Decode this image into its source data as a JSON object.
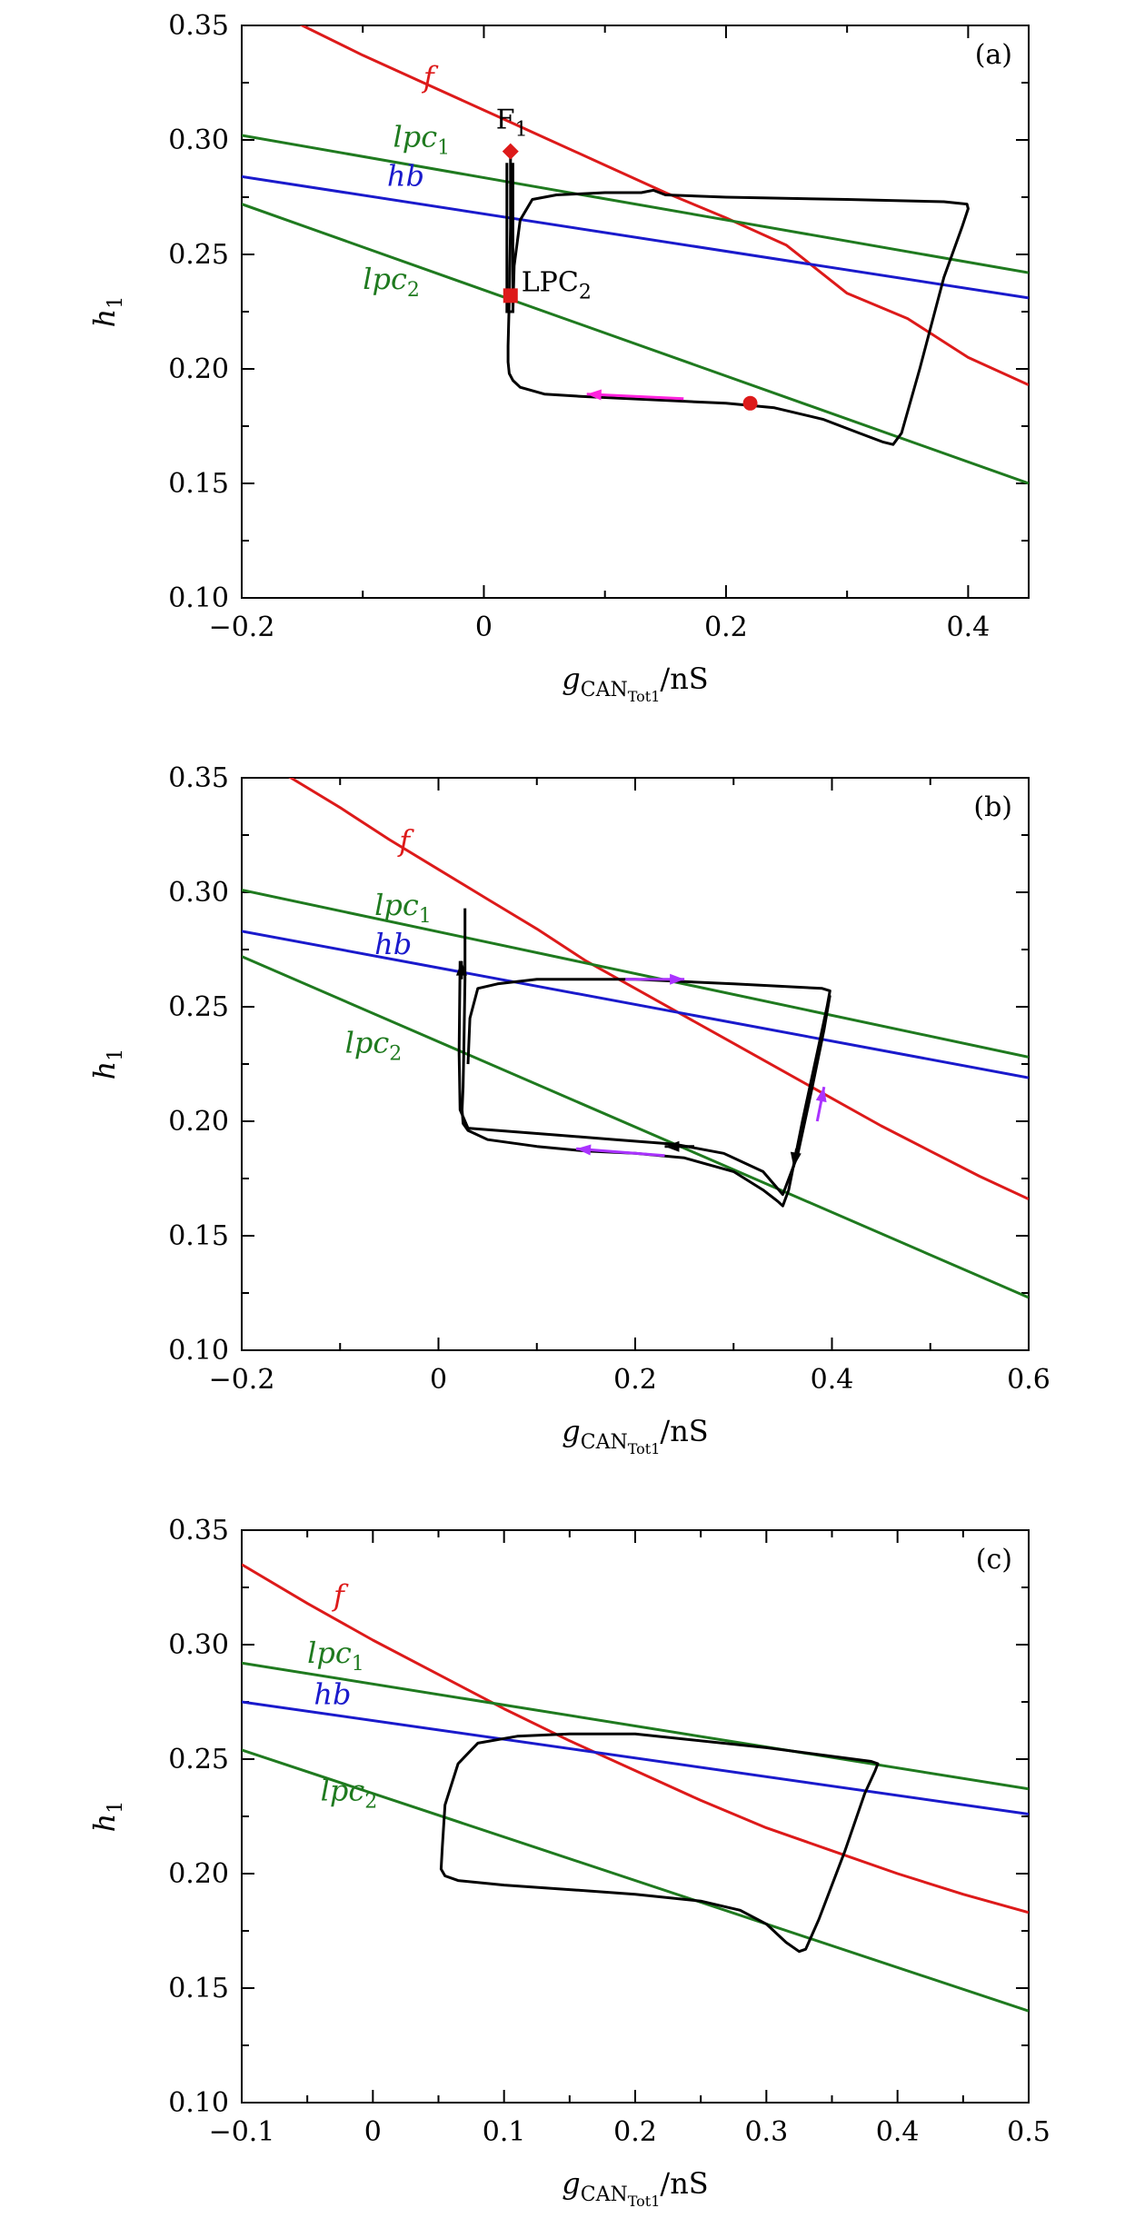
{
  "colors": {
    "f": "#dd1a1a",
    "lpc": "#1f7a1f",
    "hb": "#1a1acc",
    "trajectory": "#000000",
    "arrow_a": "#ff22dd",
    "arrow_b": "#aa33ff"
  },
  "chart_data": [
    {
      "type": "line",
      "panel": "(a)",
      "xlabel": "g",
      "xlabel_sub": "CAN",
      "xlabel_subsub": "Tot1",
      "xlabel_unit": "/nS",
      "ylabel": "h",
      "ylabel_sub": "1",
      "xlim": [
        -0.2,
        0.45
      ],
      "ylim": [
        0.1,
        0.35
      ],
      "xticks": [
        -0.2,
        0,
        0.2,
        0.4
      ],
      "xtick_labels": [
        "−0.2",
        "0",
        "0.2",
        "0.4"
      ],
      "xminor": [
        -0.1,
        0.1,
        0.3
      ],
      "yticks": [
        0.1,
        0.15,
        0.2,
        0.25,
        0.3,
        0.35
      ],
      "ytick_labels": [
        "0.10",
        "0.15",
        "0.20",
        "0.25",
        "0.30",
        "0.35"
      ],
      "series": [
        {
          "name": "f",
          "color": "f",
          "label_x": -0.05,
          "label_y": 0.323,
          "x": [
            -0.2,
            -0.15,
            -0.1,
            -0.05,
            0,
            0.05,
            0.1,
            0.15,
            0.2,
            0.25,
            0.3,
            0.35,
            0.4,
            0.45
          ],
          "y": [
            0.364,
            0.35,
            0.337,
            0.325,
            0.313,
            0.301,
            0.289,
            0.277,
            0.266,
            0.254,
            0.233,
            0.222,
            0.205,
            0.193
          ]
        },
        {
          "name": "lpc",
          "sub": "1",
          "color": "lpc",
          "label_x": -0.075,
          "label_y": 0.297,
          "x": [
            -0.2,
            0.45
          ],
          "y": [
            0.302,
            0.242
          ]
        },
        {
          "name": "hb",
          "color": "hb",
          "label_x": -0.08,
          "label_y": 0.28,
          "x": [
            -0.2,
            0.45
          ],
          "y": [
            0.284,
            0.231
          ]
        },
        {
          "name": "lpc",
          "sub": "2",
          "color": "lpc",
          "label_x": -0.1,
          "label_y": 0.235,
          "x": [
            -0.2,
            0.45
          ],
          "y": [
            0.272,
            0.15
          ]
        }
      ],
      "trajectory": {
        "x": [
          0.022,
          0.022,
          0.021,
          0.02,
          0.02,
          0.021,
          0.024,
          0.03,
          0.05,
          0.08,
          0.12,
          0.16,
          0.2,
          0.24,
          0.28,
          0.31,
          0.33,
          0.338,
          0.345,
          0.36,
          0.38,
          0.395,
          0.4,
          0.399,
          0.38,
          0.3,
          0.2,
          0.15,
          0.14,
          0.13,
          0.1,
          0.06,
          0.04,
          0.03,
          0.025,
          0.024
        ],
        "y": [
          0.293,
          0.262,
          0.23,
          0.21,
          0.203,
          0.198,
          0.195,
          0.192,
          0.189,
          0.188,
          0.187,
          0.186,
          0.185,
          0.183,
          0.178,
          0.172,
          0.168,
          0.167,
          0.172,
          0.2,
          0.24,
          0.262,
          0.27,
          0.272,
          0.273,
          0.274,
          0.275,
          0.276,
          0.278,
          0.277,
          0.277,
          0.276,
          0.274,
          0.265,
          0.245,
          0.225
        ],
        "spike": {
          "x": [
            0.019,
            0.019,
            0.024,
            0.024
          ],
          "y": [
            0.29,
            0.225,
            0.225,
            0.29
          ]
        }
      },
      "arrows": [
        {
          "color": "arrow_a",
          "from": [
            0.165,
            0.187
          ],
          "to": [
            0.085,
            0.189
          ]
        }
      ],
      "markers": [
        {
          "shape": "diamond",
          "x": 0.022,
          "y": 0.295,
          "label": "F",
          "label_sub": "1",
          "label_x": 0.01,
          "label_y": 0.305
        },
        {
          "shape": "square",
          "x": 0.022,
          "y": 0.232,
          "label": "LPC",
          "label_sub": "2",
          "label_x": 0.031,
          "label_y": 0.234
        },
        {
          "shape": "circle",
          "x": 0.22,
          "y": 0.185
        }
      ]
    },
    {
      "type": "line",
      "panel": "(b)",
      "xlabel": "g",
      "xlabel_sub": "CAN",
      "xlabel_subsub": "Tot1",
      "xlabel_unit": "/nS",
      "ylabel": "h",
      "ylabel_sub": "1",
      "xlim": [
        -0.2,
        0.6
      ],
      "ylim": [
        0.1,
        0.35
      ],
      "xticks": [
        -0.2,
        0,
        0.2,
        0.4,
        0.6
      ],
      "xtick_labels": [
        "−0.2",
        "0",
        "0.2",
        "0.4",
        "0.6"
      ],
      "xminor": [
        -0.1,
        0.1,
        0.3,
        0.5
      ],
      "yticks": [
        0.1,
        0.15,
        0.2,
        0.25,
        0.3,
        0.35
      ],
      "ytick_labels": [
        "0.10",
        "0.15",
        "0.20",
        "0.25",
        "0.30",
        "0.35"
      ],
      "series": [
        {
          "name": "f",
          "color": "f",
          "label_x": -0.04,
          "label_y": 0.318,
          "x": [
            -0.2,
            -0.15,
            -0.1,
            -0.05,
            0,
            0.05,
            0.1,
            0.15,
            0.2,
            0.25,
            0.3,
            0.35,
            0.4,
            0.45,
            0.5,
            0.55,
            0.6
          ],
          "y": [
            0.364,
            0.35,
            0.337,
            0.323,
            0.31,
            0.297,
            0.284,
            0.27,
            0.258,
            0.246,
            0.234,
            0.222,
            0.21,
            0.198,
            0.187,
            0.176,
            0.166
          ]
        },
        {
          "name": "lpc",
          "sub": "1",
          "color": "lpc",
          "label_x": -0.065,
          "label_y": 0.29,
          "x": [
            -0.2,
            0.6
          ],
          "y": [
            0.301,
            0.228
          ]
        },
        {
          "name": "hb",
          "color": "hb",
          "label_x": -0.065,
          "label_y": 0.273,
          "x": [
            -0.2,
            0.6
          ],
          "y": [
            0.283,
            0.219
          ]
        },
        {
          "name": "lpc",
          "sub": "2",
          "color": "lpc",
          "label_x": -0.095,
          "label_y": 0.23,
          "x": [
            -0.2,
            0.6
          ],
          "y": [
            0.272,
            0.123
          ]
        }
      ],
      "trajectory": {
        "x": [
          0.027,
          0.027,
          0.026,
          0.025,
          0.024,
          0.025,
          0.03,
          0.05,
          0.1,
          0.15,
          0.2,
          0.25,
          0.3,
          0.33,
          0.345,
          0.35,
          0.356,
          0.37,
          0.385,
          0.395,
          0.398,
          0.39,
          0.3,
          0.2,
          0.1,
          0.06,
          0.04,
          0.032,
          0.03
        ],
        "y": [
          0.293,
          0.262,
          0.235,
          0.215,
          0.205,
          0.199,
          0.196,
          0.192,
          0.189,
          0.187,
          0.186,
          0.184,
          0.178,
          0.17,
          0.165,
          0.163,
          0.17,
          0.2,
          0.23,
          0.25,
          0.257,
          0.258,
          0.26,
          0.262,
          0.262,
          0.26,
          0.258,
          0.245,
          0.225
        ],
        "traj2": {
          "x": [
            0.022,
            0.021,
            0.022,
            0.03,
            0.06,
            0.12,
            0.18,
            0.24,
            0.29,
            0.33,
            0.35,
            0.365,
            0.38,
            0.392,
            0.398
          ],
          "y": [
            0.27,
            0.23,
            0.205,
            0.197,
            0.196,
            0.194,
            0.192,
            0.19,
            0.186,
            0.178,
            0.168,
            0.185,
            0.215,
            0.24,
            0.255
          ]
        }
      },
      "arrows": [
        {
          "color": "arrow_b",
          "from": [
            0.23,
            0.185
          ],
          "to": [
            0.14,
            0.188
          ]
        },
        {
          "color": "arrow_b",
          "from": [
            0.19,
            0.262
          ],
          "to": [
            0.25,
            0.262
          ]
        },
        {
          "color": "arrow_b",
          "from": [
            0.385,
            0.2
          ],
          "to": [
            0.392,
            0.215
          ]
        },
        {
          "color": "trajectory",
          "from": [
            0.0235,
            0.262
          ],
          "to": [
            0.0235,
            0.27
          ]
        },
        {
          "color": "trajectory",
          "from": [
            0.26,
            0.189
          ],
          "to": [
            0.23,
            0.189
          ]
        },
        {
          "color": "trajectory",
          "from": [
            0.364,
            0.188
          ],
          "to": [
            0.361,
            0.18
          ]
        }
      ],
      "markers": []
    },
    {
      "type": "line",
      "panel": "(c)",
      "xlabel": "g",
      "xlabel_sub": "CAN",
      "xlabel_subsub": "Tot1",
      "xlabel_unit": "/nS",
      "ylabel": "h",
      "ylabel_sub": "1",
      "xlim": [
        -0.1,
        0.5
      ],
      "ylim": [
        0.1,
        0.35
      ],
      "xticks": [
        -0.1,
        0,
        0.1,
        0.2,
        0.3,
        0.4,
        0.5
      ],
      "xtick_labels": [
        "−0.1",
        "0",
        "0.1",
        "0.2",
        "0.3",
        "0.4",
        "0.5"
      ],
      "xminor": [
        -0.05,
        0.05,
        0.15,
        0.25,
        0.35,
        0.45
      ],
      "yticks": [
        0.1,
        0.15,
        0.2,
        0.25,
        0.3,
        0.35
      ],
      "ytick_labels": [
        "0.10",
        "0.15",
        "0.20",
        "0.25",
        "0.30",
        "0.35"
      ],
      "series": [
        {
          "name": "f",
          "color": "f",
          "label_x": -0.03,
          "label_y": 0.317,
          "x": [
            -0.1,
            -0.05,
            0,
            0.05,
            0.1,
            0.15,
            0.2,
            0.25,
            0.3,
            0.35,
            0.4,
            0.45,
            0.5
          ],
          "y": [
            0.335,
            0.318,
            0.302,
            0.287,
            0.272,
            0.258,
            0.245,
            0.232,
            0.22,
            0.21,
            0.2,
            0.191,
            0.183
          ]
        },
        {
          "name": "lpc",
          "sub": "1",
          "color": "lpc",
          "label_x": -0.05,
          "label_y": 0.292,
          "x": [
            -0.1,
            0.5
          ],
          "y": [
            0.292,
            0.237
          ]
        },
        {
          "name": "hb",
          "color": "hb",
          "label_x": -0.045,
          "label_y": 0.274,
          "x": [
            -0.1,
            0.5
          ],
          "y": [
            0.275,
            0.226
          ]
        },
        {
          "name": "lpc",
          "sub": "2",
          "color": "lpc",
          "label_x": -0.04,
          "label_y": 0.232,
          "x": [
            -0.1,
            0.5
          ],
          "y": [
            0.254,
            0.14
          ]
        }
      ],
      "trajectory": {
        "x": [
          0.053,
          0.052,
          0.055,
          0.065,
          0.1,
          0.15,
          0.2,
          0.25,
          0.28,
          0.3,
          0.315,
          0.325,
          0.33,
          0.34,
          0.36,
          0.375,
          0.383,
          0.385,
          0.38,
          0.3,
          0.2,
          0.15,
          0.11,
          0.08,
          0.065,
          0.055,
          0.053
        ],
        "y": [
          0.212,
          0.202,
          0.199,
          0.197,
          0.195,
          0.193,
          0.191,
          0.188,
          0.184,
          0.178,
          0.17,
          0.166,
          0.167,
          0.18,
          0.21,
          0.235,
          0.245,
          0.248,
          0.249,
          0.255,
          0.261,
          0.261,
          0.26,
          0.257,
          0.248,
          0.23,
          0.212
        ]
      },
      "arrows": [],
      "markers": []
    }
  ]
}
